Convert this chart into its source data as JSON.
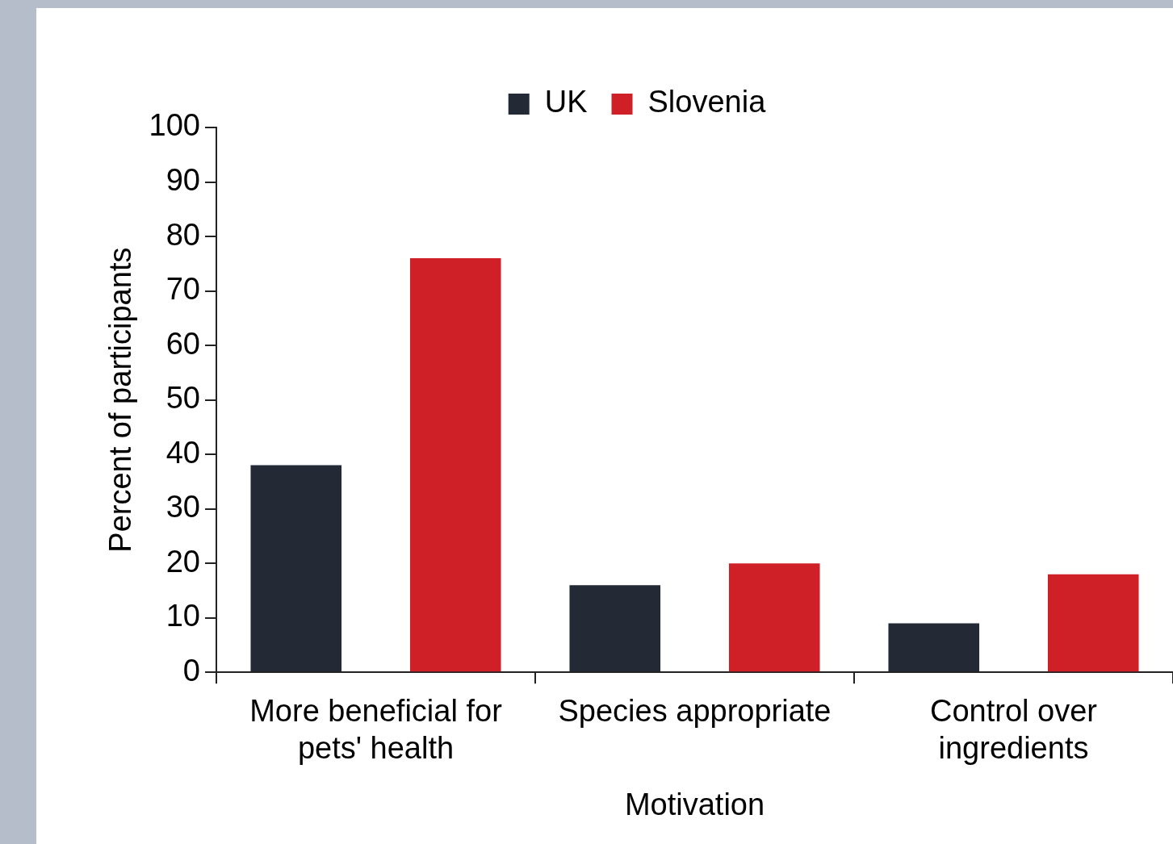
{
  "chart_data": {
    "type": "bar",
    "xlabel": "Motivation",
    "ylabel": "Percent of participants",
    "categories": [
      "More beneficial for pets' health",
      "Species appropriate",
      "Control over ingredients"
    ],
    "series": [
      {
        "name": "UK",
        "color": "#232a36",
        "values": [
          38,
          16,
          9
        ]
      },
      {
        "name": "Slovenia",
        "color": "#cf2027",
        "values": [
          76,
          20,
          18
        ]
      }
    ],
    "ylim": [
      0,
      100
    ],
    "yticks": [
      0,
      10,
      20,
      30,
      40,
      50,
      60,
      70,
      80,
      90,
      100
    ],
    "grid": false,
    "legend": "top"
  }
}
